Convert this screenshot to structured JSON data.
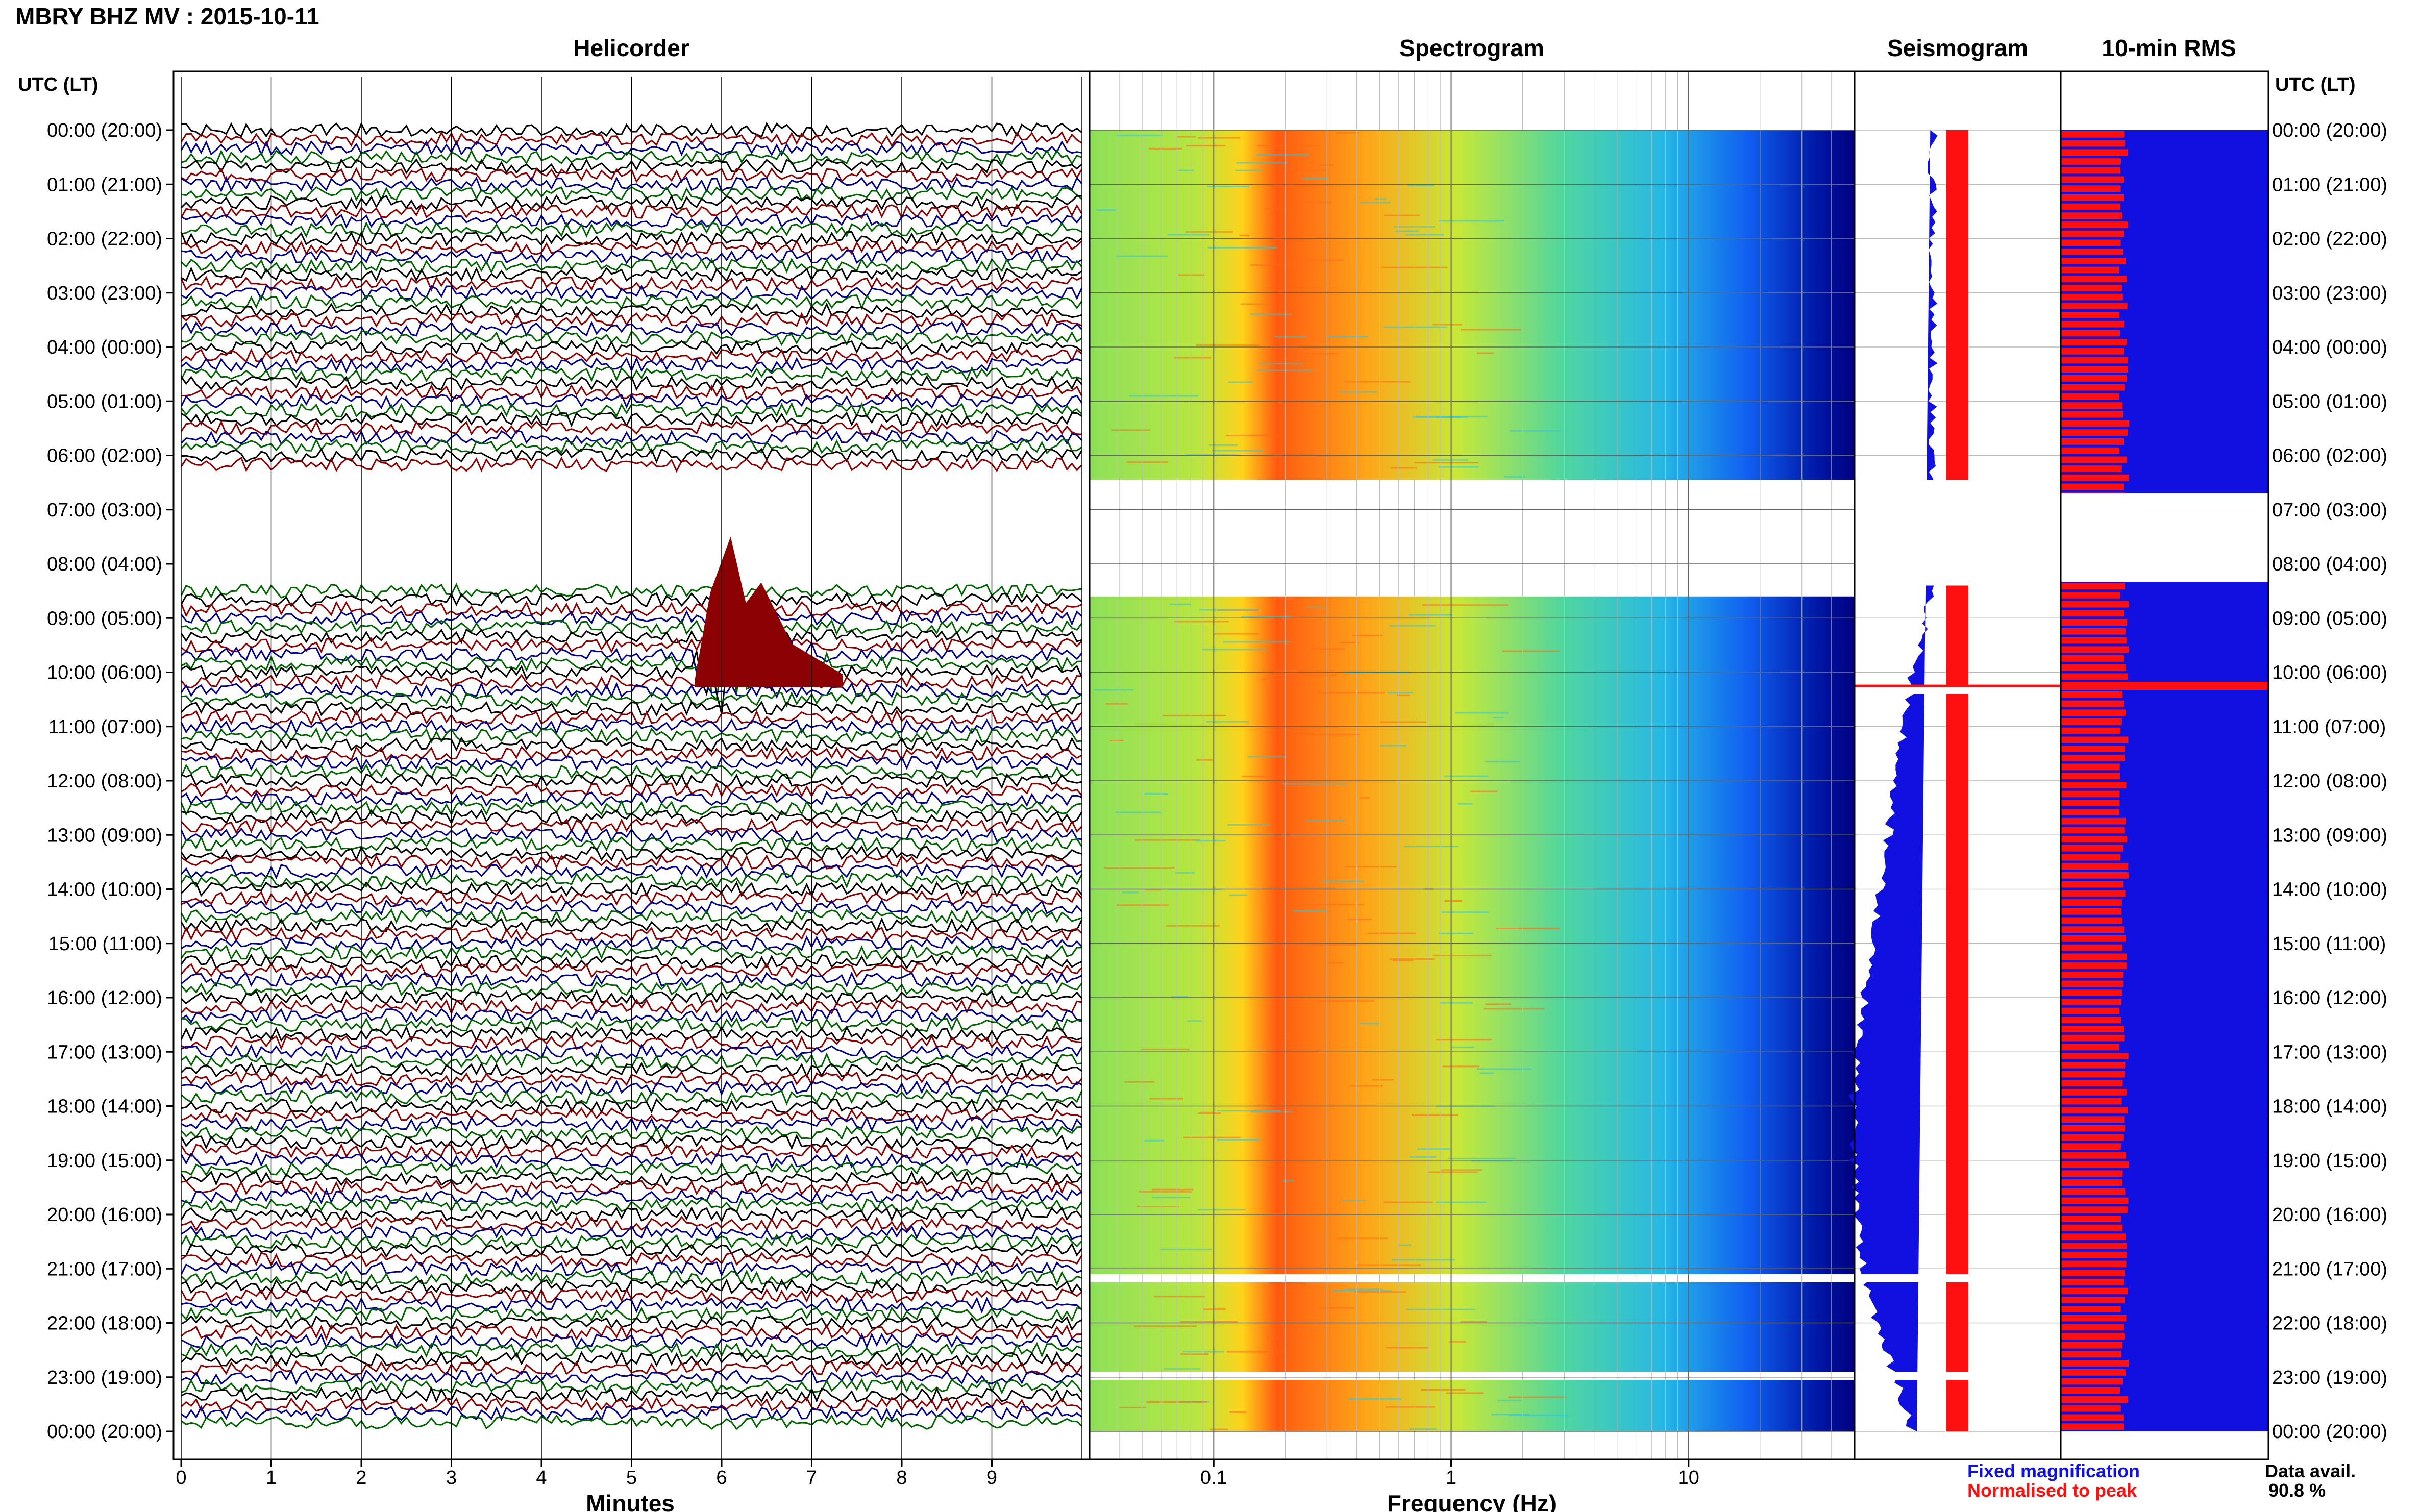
{
  "header": {
    "title": "MBRY BHZ MV : 2015-10-11",
    "utc_label_left": "UTC (LT)",
    "utc_label_right": "UTC (LT)"
  },
  "panels": {
    "helicorder_title": "Helicorder",
    "spectrogram_title": "Spectrogram",
    "seismogram_title": "Seismogram",
    "rms_title": "10-min RMS"
  },
  "time_labels": [
    "00:00 (20:00)",
    "01:00 (21:00)",
    "02:00 (22:00)",
    "03:00 (23:00)",
    "04:00 (00:00)",
    "05:00 (01:00)",
    "06:00 (02:00)",
    "07:00 (03:00)",
    "08:00 (04:00)",
    "09:00 (05:00)",
    "10:00 (06:00)",
    "11:00 (07:00)",
    "12:00 (08:00)",
    "13:00 (09:00)",
    "14:00 (10:00)",
    "15:00 (11:00)",
    "16:00 (12:00)",
    "17:00 (13:00)",
    "18:00 (14:00)",
    "19:00 (15:00)",
    "20:00 (16:00)",
    "21:00 (17:00)",
    "22:00 (18:00)",
    "23:00 (19:00)",
    "00:00 (20:00)"
  ],
  "legend": {
    "fixed": "Fixed magnification",
    "normalised": "Normalised to peak",
    "fixed_color": "#1010e0",
    "normalised_color": "#ff1010",
    "avail_label": "Data avail.",
    "avail_value": "90.8 %"
  },
  "colors": {
    "heli_trace_cycle": [
      "#000000",
      "#8b0000",
      "#00008b",
      "#006400"
    ],
    "seis_fixed": "#1010e0",
    "seis_norm": "#ff1010",
    "rms_fixed": "#1010e0",
    "rms_norm": "#ff1010"
  },
  "chart_data": [
    {
      "type": "helicorder",
      "xlabel": "Minutes",
      "x_ticks": [
        "0",
        "1",
        "2",
        "3",
        "4",
        "5",
        "6",
        "7",
        "8",
        "9"
      ],
      "xlim": [
        0,
        10
      ],
      "rows_per_hour": 6,
      "data_gaps_hours": [
        [
          6.25,
          8.5
        ]
      ],
      "event": {
        "hour": 9.85,
        "minute": 6.1
      }
    },
    {
      "type": "heatmap",
      "title": "Spectrogram",
      "xlabel": "Frequency (Hz)",
      "x_scale": "log",
      "xlim": [
        0.03,
        50
      ],
      "x_ticks": [
        "0.1",
        "1",
        "10"
      ],
      "peak_band_hz": [
        0.22,
        0.5
      ],
      "data_gaps_hours": [
        [
          6.45,
          8.6
        ],
        [
          21.1,
          21.25
        ],
        [
          22.9,
          23.05
        ]
      ]
    },
    {
      "type": "line",
      "title": "Seismogram",
      "data_gaps_hours": [
        [
          6.45,
          8.4
        ],
        [
          10.25,
          10.4
        ],
        [
          21.1,
          21.25
        ],
        [
          22.9,
          23.05
        ]
      ],
      "fixed_half_width": [
        0.2,
        0.2,
        0.2,
        0.2,
        0.2,
        0.2,
        0.2,
        0.2,
        0.2,
        0.25,
        0.4,
        0.5,
        0.58,
        0.66,
        0.74,
        0.82,
        0.88,
        0.95,
        0.98,
        0.96,
        0.92,
        0.85,
        0.7,
        0.5,
        0.3
      ]
    },
    {
      "type": "bar",
      "title": "10-min RMS",
      "data_gaps_hours": [
        [
          6.7,
          8.33
        ]
      ],
      "normalised_level": 0.33,
      "spike_hour": 10.25
    }
  ]
}
